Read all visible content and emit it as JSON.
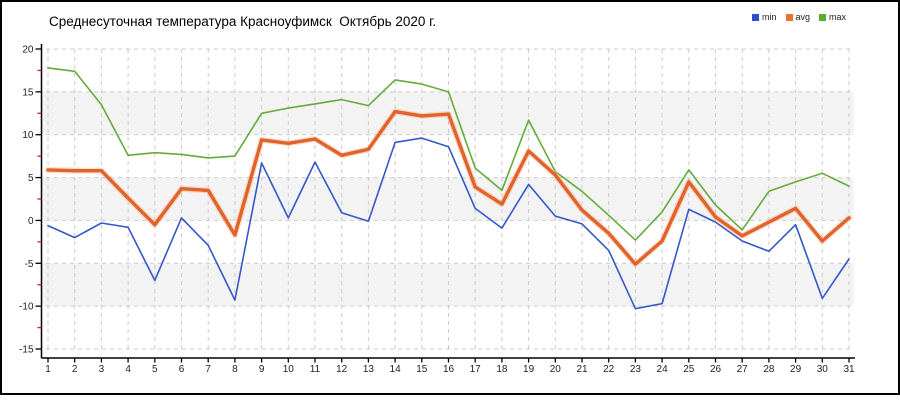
{
  "window": {
    "frame_color": "#000000",
    "background_color": "#ffffff"
  },
  "title": "Среднесуточная температура Красноуфимск  Октябрь 2020 г.",
  "legend": [
    {
      "label": "min",
      "color": "#2B50CC"
    },
    {
      "label": "avg",
      "color": "#E8722E"
    },
    {
      "label": "max",
      "color": "#54B02C"
    }
  ],
  "axes": {
    "y_tick_labels": [
      "20",
      "15",
      "10",
      "5",
      "0",
      "-5",
      "-10",
      "-15"
    ],
    "y_tick_values": [
      20,
      15,
      10,
      5,
      0,
      -5,
      -10,
      -15
    ],
    "y_minor_tick_values": [
      17.5,
      12.5,
      7.5,
      2.5,
      -2.5,
      -7.5,
      -12.5
    ],
    "y_minor_tick_color": "#CC1F1A",
    "x_tick_labels": [
      "1",
      "2",
      "3",
      "4",
      "5",
      "6",
      "7",
      "8",
      "9",
      "10",
      "11",
      "12",
      "13",
      "14",
      "15",
      "16",
      "17",
      "18",
      "19",
      "20",
      "21",
      "22",
      "23",
      "24",
      "25",
      "26",
      "27",
      "28",
      "29",
      "30",
      "31"
    ],
    "axis_color": "#000000",
    "grid_color": "#cbcbcb",
    "band_color": "#f3f3f3",
    "tick_label_color": "#222222"
  },
  "chart_data": {
    "type": "line",
    "title": "Среднесуточная температура Красноуфимск  Октябрь 2020 г.",
    "xlabel": "",
    "ylabel": "",
    "x": [
      1,
      2,
      3,
      4,
      5,
      6,
      7,
      8,
      9,
      10,
      11,
      12,
      13,
      14,
      15,
      16,
      17,
      18,
      19,
      20,
      21,
      22,
      23,
      24,
      25,
      26,
      27,
      28,
      29,
      30,
      31
    ],
    "ylim": [
      -15,
      20
    ],
    "ytick_step": 5,
    "grid": true,
    "legend_position": "top-right",
    "background_bands": [
      [
        10,
        15
      ],
      [
        0,
        5
      ],
      [
        -10,
        -5
      ]
    ],
    "series": [
      {
        "name": "min",
        "color": "#3558C8",
        "line_width": 1.6,
        "values": [
          -0.6,
          -2.0,
          -0.3,
          -0.8,
          -7.0,
          0.3,
          -2.9,
          -9.3,
          6.7,
          0.3,
          6.8,
          0.9,
          -0.1,
          9.1,
          9.6,
          8.6,
          1.4,
          -0.9,
          4.2,
          0.5,
          -0.4,
          -3.5,
          -10.3,
          -9.7,
          1.3,
          -0.2,
          -2.4,
          -3.6,
          -0.5,
          -9.1,
          -4.5
        ]
      },
      {
        "name": "avg",
        "color": "#E2622B",
        "line_width": 3.4,
        "halo_color": "#F4B68E",
        "values": [
          5.9,
          5.8,
          5.8,
          2.6,
          -0.5,
          3.7,
          3.5,
          -1.7,
          9.4,
          9.0,
          9.5,
          7.6,
          8.3,
          12.7,
          12.2,
          12.4,
          3.9,
          1.9,
          8.1,
          5.3,
          1.2,
          -1.5,
          -5.1,
          -2.4,
          4.5,
          0.4,
          -1.8,
          -0.2,
          1.4,
          -2.4,
          0.3
        ]
      },
      {
        "name": "max",
        "color": "#64AC3A",
        "line_width": 1.6,
        "values": [
          17.8,
          17.4,
          13.5,
          7.6,
          7.9,
          7.7,
          7.3,
          7.5,
          12.5,
          13.1,
          13.6,
          14.1,
          13.4,
          16.4,
          15.9,
          15.0,
          6.1,
          3.5,
          11.7,
          5.7,
          3.4,
          0.6,
          -2.3,
          1.0,
          5.9,
          1.8,
          -1.1,
          3.4,
          4.5,
          5.5,
          4.0
        ]
      }
    ]
  }
}
